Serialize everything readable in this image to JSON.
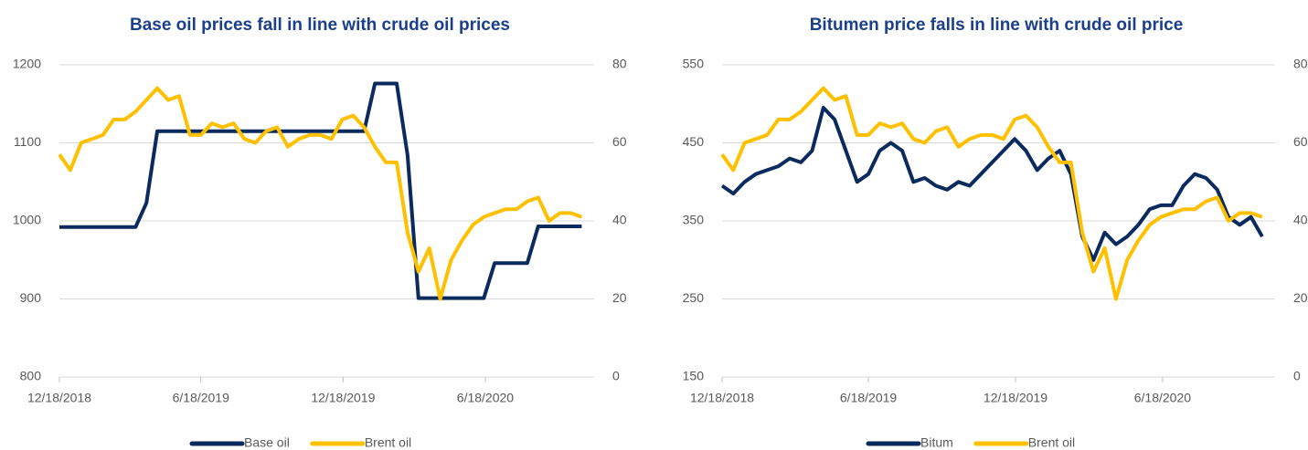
{
  "chart_data": [
    {
      "type": "line",
      "title": "Base oil prices fall in line with crude oil prices",
      "x": [
        "12/18/2018",
        "1/1/2019",
        "1/15/2019",
        "1/29/2019",
        "2/12/2019",
        "2/26/2019",
        "3/12/2019",
        "3/26/2019",
        "4/9/2019",
        "4/23/2019",
        "5/7/2019",
        "5/21/2019",
        "6/4/2019",
        "6/18/2019",
        "7/2/2019",
        "7/16/2019",
        "7/30/2019",
        "8/13/2019",
        "8/27/2019",
        "9/10/2019",
        "9/24/2019",
        "10/8/2019",
        "10/22/2019",
        "11/5/2019",
        "11/19/2019",
        "12/3/2019",
        "12/17/2019",
        "12/31/2019",
        "1/14/2020",
        "1/28/2020",
        "2/11/2020",
        "2/25/2020",
        "3/10/2020",
        "3/24/2020",
        "4/7/2020",
        "4/21/2020",
        "5/5/2020",
        "5/19/2020",
        "6/2/2020",
        "6/16/2020",
        "6/30/2020",
        "7/14/2020",
        "7/28/2020",
        "8/11/2020",
        "8/25/2020",
        "9/8/2020",
        "9/22/2020",
        "10/6/2020",
        "10/20/2020"
      ],
      "series": [
        {
          "name": "Base oil",
          "color": "#0b2a5e",
          "axis": "y",
          "values": [
            992,
            992,
            992,
            992,
            992,
            992,
            992,
            992,
            1023,
            1115,
            1115,
            1115,
            1115,
            1115,
            1115,
            1115,
            1115,
            1115,
            1115,
            1115,
            1115,
            1115,
            1115,
            1115,
            1115,
            1115,
            1115,
            1115,
            1115,
            1176,
            1176,
            1176,
            1084,
            901,
            901,
            901,
            901,
            901,
            901,
            901,
            946,
            946,
            946,
            946,
            993,
            993,
            993,
            993,
            993
          ]
        },
        {
          "name": "Brent oil",
          "color": "#ffc000",
          "axis": "y2",
          "values": [
            57,
            53,
            60,
            61,
            62,
            66,
            66,
            68,
            71,
            74,
            71,
            72,
            62,
            62,
            65,
            64,
            65,
            61,
            60,
            63,
            64,
            59,
            61,
            62,
            62,
            61,
            66,
            67,
            64,
            59,
            55,
            55,
            37,
            27,
            33,
            20,
            30,
            35,
            39,
            41,
            42,
            43,
            43,
            45,
            46,
            40,
            42,
            42,
            41
          ]
        }
      ],
      "xlim": [
        "12/18/2018",
        "11/5/2020"
      ],
      "xticks": [
        "12/18/2018",
        "6/18/2019",
        "12/18/2019",
        "6/18/2020"
      ],
      "ylim": [
        800,
        1200
      ],
      "yticks": [
        800,
        900,
        1000,
        1100,
        1200
      ],
      "y2lim": [
        0,
        80
      ],
      "y2ticks": [
        0,
        20,
        40,
        60,
        80
      ],
      "grid": true,
      "legend": "bottom"
    },
    {
      "type": "line",
      "title": "Bitumen price falls in line with crude oil price",
      "x": [
        "12/18/2018",
        "1/1/2019",
        "1/15/2019",
        "1/29/2019",
        "2/12/2019",
        "2/26/2019",
        "3/12/2019",
        "3/26/2019",
        "4/9/2019",
        "4/23/2019",
        "5/7/2019",
        "5/21/2019",
        "6/4/2019",
        "6/18/2019",
        "7/2/2019",
        "7/16/2019",
        "7/30/2019",
        "8/13/2019",
        "8/27/2019",
        "9/10/2019",
        "9/24/2019",
        "10/8/2019",
        "10/22/2019",
        "11/5/2019",
        "11/19/2019",
        "12/3/2019",
        "12/17/2019",
        "12/31/2019",
        "1/14/2020",
        "1/28/2020",
        "2/11/2020",
        "2/25/2020",
        "3/10/2020",
        "3/24/2020",
        "4/7/2020",
        "4/21/2020",
        "5/5/2020",
        "5/19/2020",
        "6/2/2020",
        "6/16/2020",
        "6/30/2020",
        "7/14/2020",
        "7/28/2020",
        "8/11/2020",
        "8/25/2020",
        "9/8/2020",
        "9/22/2020",
        "10/6/2020",
        "10/20/2020"
      ],
      "series": [
        {
          "name": "Bitum",
          "color": "#0b2a5e",
          "axis": "y",
          "values": [
            395,
            385,
            400,
            410,
            415,
            420,
            430,
            425,
            440,
            495,
            480,
            440,
            400,
            410,
            440,
            450,
            440,
            400,
            405,
            395,
            390,
            400,
            395,
            410,
            425,
            440,
            455,
            440,
            415,
            430,
            440,
            410,
            330,
            300,
            335,
            320,
            330,
            345,
            365,
            370,
            370,
            395,
            410,
            405,
            390,
            355,
            345,
            355,
            330
          ]
        },
        {
          "name": "Brent oil",
          "color": "#ffc000",
          "axis": "y2",
          "values": [
            57,
            53,
            60,
            61,
            62,
            66,
            66,
            68,
            71,
            74,
            71,
            72,
            62,
            62,
            65,
            64,
            65,
            61,
            60,
            63,
            64,
            59,
            61,
            62,
            62,
            61,
            66,
            67,
            64,
            59,
            55,
            55,
            37,
            27,
            33,
            20,
            30,
            35,
            39,
            41,
            42,
            43,
            43,
            45,
            46,
            40,
            42,
            42,
            41
          ]
        }
      ],
      "xlim": [
        "12/18/2018",
        "11/5/2020"
      ],
      "xticks": [
        "12/18/2018",
        "6/18/2019",
        "12/18/2019",
        "6/18/2020"
      ],
      "ylim": [
        150,
        550
      ],
      "yticks": [
        150,
        250,
        350,
        450,
        550
      ],
      "y2lim": [
        0,
        80
      ],
      "y2ticks": [
        0,
        20,
        40,
        60,
        80
      ],
      "grid": true,
      "legend": "bottom"
    }
  ]
}
